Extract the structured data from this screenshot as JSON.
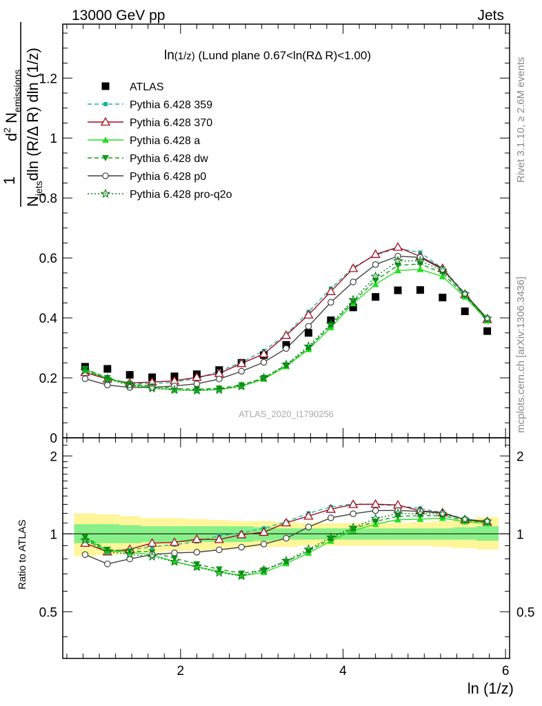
{
  "header": {
    "left": "13000 GeV pp",
    "right": "Jets"
  },
  "plot_title": {
    "main": "ln",
    "sub": "(1/z)",
    "rest": " (Lund plane 0.67<ln(RΔ R)<1.00)"
  },
  "side_labels": {
    "rivet": "Rivet 3.1.10, ≥ 2.6M events",
    "mcplots": "mcplots.cern.ch [arXiv:1306.3436]"
  },
  "watermark": "ATLAS_2020_I1790256",
  "ylabel": {
    "frac_num": "1",
    "frac_den_main": "N",
    "frac_den_sub": "jets",
    "d2": "d",
    "d2_sup": "2",
    "n_main": " N",
    "n_sub": "emissions",
    "den": "dln (R/Δ R) dln (1/z)"
  },
  "ratio_ylabel": "Ratio to ATLAS",
  "xlabel": "ln (1/z)",
  "colors": {
    "atlas": "#000000",
    "p359": "#16b3a0",
    "p370": "#a00a1e",
    "pa": "#22e01e",
    "pdw": "#0a9e12",
    "pp0": "#404040",
    "pq2o": "#0a7a1a",
    "band_inner": "#88f088",
    "band_outer": "#fff59a"
  },
  "chart_data": {
    "type": "scatter",
    "x": [
      0.825,
      1.1,
      1.375,
      1.65,
      1.925,
      2.2,
      2.475,
      2.75,
      3.025,
      3.3,
      3.575,
      3.85,
      4.125,
      4.4,
      4.675,
      4.95,
      5.225,
      5.5,
      5.775
    ],
    "main": {
      "xlim": [
        0.55,
        6.05
      ],
      "ylim": [
        0,
        1.38
      ],
      "yticks": [
        0,
        0.2,
        0.4,
        0.6,
        0.8,
        1,
        1.2
      ],
      "ytick_labels": [
        "0",
        "0.2",
        "0.4",
        "0.6",
        "0.8",
        "1",
        "1.2"
      ]
    },
    "ratio": {
      "ylim": [
        0.33,
        2.35
      ],
      "yticks": [
        0.5,
        1,
        2
      ],
      "ytick_labels": [
        "0.5",
        "1",
        "2"
      ]
    },
    "xticks": [
      2,
      4,
      6
    ],
    "xtick_labels": [
      "2",
      "4",
      "6"
    ],
    "series": [
      {
        "name": "ATLAS",
        "style": "data",
        "color": "#000000",
        "values": [
          0.237,
          0.23,
          0.21,
          0.202,
          0.205,
          0.212,
          0.226,
          0.25,
          0.276,
          0.31,
          0.35,
          0.392,
          0.435,
          0.47,
          0.492,
          0.493,
          0.468,
          0.422,
          0.356
        ]
      },
      {
        "name": "Pythia 6.428 359",
        "style": "dashed",
        "marker": "square",
        "color": "#16b3a0",
        "values": [
          0.225,
          0.196,
          0.182,
          0.18,
          0.186,
          0.198,
          0.222,
          0.252,
          0.29,
          0.345,
          0.42,
          0.498,
          0.568,
          0.61,
          0.632,
          0.618,
          0.565,
          0.482,
          0.396
        ]
      },
      {
        "name": "Pythia 6.428 370",
        "style": "solid",
        "marker": "triangle-open",
        "color": "#a00a1e",
        "values": [
          0.218,
          0.196,
          0.183,
          0.186,
          0.19,
          0.202,
          0.215,
          0.248,
          0.28,
          0.342,
          0.41,
          0.488,
          0.565,
          0.612,
          0.636,
          0.605,
          0.565,
          0.478,
          0.395
        ]
      },
      {
        "name": "Pythia 6.428 a",
        "style": "solid",
        "marker": "triangle",
        "color": "#22e01e",
        "values": [
          0.228,
          0.198,
          0.178,
          0.168,
          0.16,
          0.158,
          0.162,
          0.172,
          0.196,
          0.238,
          0.295,
          0.368,
          0.448,
          0.512,
          0.558,
          0.562,
          0.538,
          0.47,
          0.39
        ]
      },
      {
        "name": "Pythia 6.428 dw",
        "style": "dashed",
        "marker": "triangle-down",
        "color": "#0a9e12",
        "values": [
          0.23,
          0.2,
          0.18,
          0.172,
          0.165,
          0.162,
          0.165,
          0.176,
          0.2,
          0.242,
          0.3,
          0.375,
          0.455,
          0.525,
          0.575,
          0.58,
          0.55,
          0.475,
          0.394
        ]
      },
      {
        "name": "Pythia 6.428 p0",
        "style": "solid",
        "marker": "circle-open",
        "color": "#404040",
        "values": [
          0.197,
          0.176,
          0.168,
          0.168,
          0.173,
          0.18,
          0.196,
          0.222,
          0.252,
          0.298,
          0.372,
          0.452,
          0.52,
          0.578,
          0.606,
          0.602,
          0.562,
          0.48,
          0.398
        ]
      },
      {
        "name": "Pythia 6.428 pro-q2o",
        "style": "dotted",
        "marker": "star",
        "color": "#0a7a1a",
        "values": [
          0.224,
          0.196,
          0.175,
          0.165,
          0.16,
          0.158,
          0.16,
          0.172,
          0.2,
          0.244,
          0.305,
          0.38,
          0.46,
          0.538,
          0.59,
          0.59,
          0.558,
          0.48,
          0.398
        ]
      }
    ],
    "bands": {
      "x_edges": [
        0.69,
        0.96,
        1.24,
        1.51,
        1.79,
        2.06,
        2.34,
        2.61,
        2.89,
        3.16,
        3.44,
        3.71,
        3.99,
        4.26,
        4.54,
        4.81,
        5.09,
        5.36,
        5.64,
        5.91
      ],
      "inner_lo": [
        0.92,
        0.92,
        0.92,
        0.93,
        0.93,
        0.93,
        0.93,
        0.93,
        0.94,
        0.95,
        0.95,
        0.95,
        0.95,
        0.95,
        0.95,
        0.95,
        0.95,
        0.95,
        0.94
      ],
      "inner_hi": [
        1.09,
        1.09,
        1.08,
        1.07,
        1.07,
        1.07,
        1.07,
        1.07,
        1.06,
        1.05,
        1.05,
        1.05,
        1.05,
        1.05,
        1.05,
        1.05,
        1.05,
        1.06,
        1.07
      ],
      "outer_lo": [
        0.82,
        0.83,
        0.84,
        0.85,
        0.86,
        0.86,
        0.87,
        0.88,
        0.89,
        0.89,
        0.9,
        0.9,
        0.9,
        0.9,
        0.9,
        0.9,
        0.89,
        0.88,
        0.87
      ],
      "outer_hi": [
        1.2,
        1.19,
        1.17,
        1.15,
        1.15,
        1.14,
        1.13,
        1.12,
        1.12,
        1.11,
        1.1,
        1.1,
        1.1,
        1.1,
        1.1,
        1.11,
        1.12,
        1.14,
        1.16
      ]
    }
  }
}
